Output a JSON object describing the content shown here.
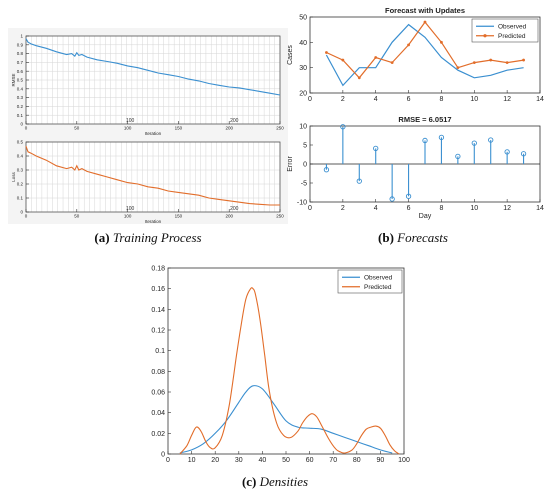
{
  "captions": {
    "a_label": "(a)",
    "a_text": "Training Process",
    "b_label": "(b)",
    "b_text": "Forecasts",
    "c_label": "(c)",
    "c_text": "Densities"
  },
  "chart_data": [
    {
      "id": "training-rmse",
      "type": "line",
      "xlabel": "Iteration",
      "ylabel": "RMSE",
      "xlim": [
        0,
        250
      ],
      "ylim": [
        0,
        1
      ],
      "x_ticks": [
        0,
        50,
        100,
        150,
        200,
        250
      ],
      "y_ticks": [
        0,
        0.1,
        0.2,
        0.3,
        0.4,
        0.5,
        0.6,
        0.7,
        0.8,
        0.9,
        1
      ],
      "extra_labels": [
        "100",
        "200"
      ],
      "series": [
        {
          "color": "#3a8fd0",
          "x": [
            0,
            2,
            5,
            10,
            20,
            30,
            40,
            45,
            48,
            50,
            52,
            55,
            60,
            70,
            80,
            90,
            100,
            110,
            120,
            130,
            140,
            150,
            160,
            170,
            180,
            190,
            200,
            210,
            220,
            230,
            240,
            250
          ],
          "y": [
            0.97,
            0.93,
            0.91,
            0.89,
            0.86,
            0.82,
            0.79,
            0.8,
            0.77,
            0.81,
            0.78,
            0.79,
            0.76,
            0.73,
            0.71,
            0.69,
            0.66,
            0.64,
            0.61,
            0.58,
            0.56,
            0.54,
            0.51,
            0.49,
            0.46,
            0.44,
            0.42,
            0.41,
            0.39,
            0.37,
            0.35,
            0.33
          ]
        }
      ]
    },
    {
      "id": "training-loss",
      "type": "line",
      "xlabel": "Iteration",
      "ylabel": "Loss",
      "xlim": [
        0,
        250
      ],
      "ylim": [
        0,
        0.5
      ],
      "x_ticks": [
        0,
        50,
        100,
        150,
        200,
        250
      ],
      "y_ticks": [
        0,
        0.1,
        0.2,
        0.3,
        0.4,
        0.5
      ],
      "extra_labels": [
        "100",
        "200"
      ],
      "series": [
        {
          "color": "#e26d2a",
          "x": [
            0,
            2,
            5,
            10,
            20,
            30,
            40,
            45,
            48,
            50,
            52,
            55,
            60,
            70,
            80,
            90,
            100,
            110,
            120,
            130,
            140,
            150,
            160,
            170,
            180,
            190,
            200,
            210,
            220,
            230,
            240,
            250
          ],
          "y": [
            0.47,
            0.43,
            0.42,
            0.4,
            0.37,
            0.33,
            0.31,
            0.32,
            0.3,
            0.33,
            0.3,
            0.31,
            0.29,
            0.27,
            0.25,
            0.23,
            0.21,
            0.2,
            0.18,
            0.17,
            0.15,
            0.14,
            0.13,
            0.12,
            0.1,
            0.09,
            0.08,
            0.07,
            0.06,
            0.055,
            0.05,
            0.05
          ]
        }
      ]
    },
    {
      "id": "forecast-updates",
      "type": "line",
      "title": "Forecast with Updates",
      "xlabel": "",
      "ylabel": "Cases",
      "xlim": [
        0,
        14
      ],
      "ylim": [
        20,
        50
      ],
      "x_ticks": [
        0,
        2,
        4,
        6,
        8,
        10,
        12,
        14
      ],
      "y_ticks": [
        20,
        30,
        40,
        50
      ],
      "legend": "top-right",
      "x": [
        1,
        2,
        3,
        4,
        5,
        6,
        7,
        8,
        9,
        10,
        11,
        12,
        13
      ],
      "series": [
        {
          "name": "Observed",
          "color": "#3a8fd0",
          "marker": false,
          "values": [
            35,
            23,
            30,
            30,
            40,
            47,
            42,
            34,
            29,
            26,
            27,
            29,
            30
          ]
        },
        {
          "name": "Predicted",
          "color": "#e26d2a",
          "marker": true,
          "values": [
            36,
            33,
            26,
            34,
            32,
            39,
            48,
            40,
            30,
            32,
            33,
            32,
            33
          ]
        }
      ]
    },
    {
      "id": "forecast-error",
      "type": "stem",
      "title": "RMSE = 6.0517",
      "xlabel": "Day",
      "ylabel": "Error",
      "xlim": [
        0,
        14
      ],
      "ylim": [
        -10,
        10
      ],
      "x_ticks": [
        0,
        2,
        4,
        6,
        8,
        10,
        12,
        14
      ],
      "y_ticks": [
        -10,
        -5,
        0,
        5,
        10
      ],
      "color": "#3a8fd0",
      "x": [
        1,
        2,
        3,
        4,
        5,
        6,
        7,
        8,
        9,
        10,
        11,
        12,
        13
      ],
      "values": [
        -1.5,
        9.8,
        -4.5,
        4.1,
        -9.2,
        -8.5,
        6.2,
        7.0,
        2.0,
        5.5,
        6.3,
        3.2,
        2.7
      ]
    },
    {
      "id": "densities",
      "type": "line",
      "xlabel": "",
      "ylabel": "",
      "xlim": [
        0,
        100
      ],
      "ylim": [
        0,
        0.18
      ],
      "x_ticks": [
        0,
        10,
        20,
        30,
        40,
        50,
        60,
        70,
        80,
        90,
        100
      ],
      "y_ticks": [
        0,
        0.02,
        0.04,
        0.06,
        0.08,
        0.1,
        0.12,
        0.14,
        0.16,
        0.18
      ],
      "legend": "top-right",
      "series": [
        {
          "name": "Observed",
          "color": "#3a8fd0",
          "x": [
            5,
            10,
            15,
            20,
            25,
            30,
            33,
            36,
            40,
            45,
            50,
            55,
            60,
            65,
            70,
            75,
            80,
            85,
            90,
            95
          ],
          "y": [
            0.001,
            0.004,
            0.01,
            0.02,
            0.033,
            0.05,
            0.06,
            0.066,
            0.063,
            0.048,
            0.032,
            0.026,
            0.025,
            0.024,
            0.02,
            0.016,
            0.012,
            0.008,
            0.004,
            0.001
          ]
        },
        {
          "name": "Predicted",
          "color": "#e26d2a",
          "x": [
            5,
            8,
            10,
            12,
            14,
            16,
            18,
            20,
            23,
            26,
            29,
            31,
            33,
            35,
            36,
            37,
            39,
            41,
            43,
            46,
            49,
            52,
            55,
            57,
            59,
            61,
            63,
            65,
            68,
            71,
            73,
            75,
            78,
            80,
            82,
            84,
            86,
            88,
            90,
            92,
            94,
            96,
            98
          ],
          "y": [
            0.0,
            0.008,
            0.018,
            0.026,
            0.022,
            0.012,
            0.006,
            0.006,
            0.018,
            0.048,
            0.095,
            0.125,
            0.15,
            0.16,
            0.16,
            0.155,
            0.13,
            0.095,
            0.06,
            0.03,
            0.018,
            0.016,
            0.022,
            0.03,
            0.036,
            0.039,
            0.036,
            0.028,
            0.015,
            0.005,
            0.002,
            0.001,
            0.004,
            0.01,
            0.018,
            0.024,
            0.026,
            0.027,
            0.025,
            0.018,
            0.009,
            0.003,
            0.0
          ]
        }
      ]
    }
  ]
}
